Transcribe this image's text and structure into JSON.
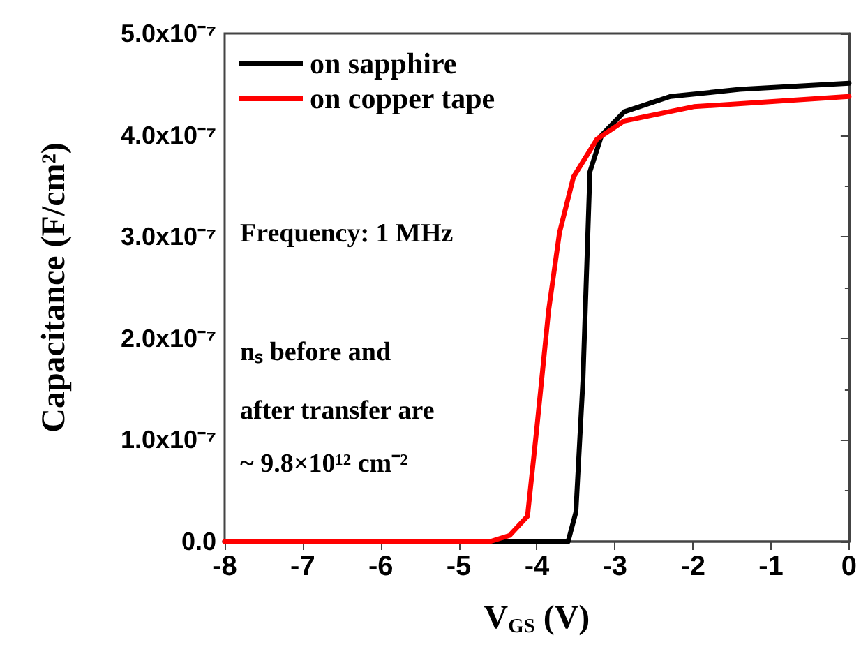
{
  "chart_data": {
    "type": "line",
    "xlabel": "V$_{GS}$ (V)",
    "ylabel": "Capacitance (F/cm²)",
    "xlim": [
      -8,
      0
    ],
    "xticks": [
      -8,
      -7,
      -6,
      -5,
      -4,
      -3,
      -2,
      -1,
      0
    ],
    "ylim": [
      0,
      5e-07
    ],
    "yticks": [
      {
        "value": 0,
        "label": "0.0"
      },
      {
        "value": 1e-07,
        "label": "1.0x10⁻⁷"
      },
      {
        "value": 2e-07,
        "label": "2.0x10⁻⁷"
      },
      {
        "value": 3e-07,
        "label": "3.0x10⁻⁷"
      },
      {
        "value": 4e-07,
        "label": "4.0x10⁻⁷"
      },
      {
        "value": 5e-07,
        "label": "5.0x10⁻⁷"
      }
    ],
    "grid": false,
    "legend": "top left",
    "marker": "none",
    "line_style": "solid",
    "annotations": [
      "Frequency: 1 MHz",
      "nₛ before and",
      "after transfer are",
      "~ 9.8×10¹² cm⁻²"
    ],
    "series": [
      {
        "name": "on sapphire",
        "color": "#000000",
        "x": [
          -8,
          -3.6,
          -3.5,
          -3.41,
          -3.32,
          -3.17,
          -2.88,
          -2.29,
          -1.4,
          0
        ],
        "values": [
          0,
          0,
          2.9e-08,
          1.58e-07,
          3.64e-07,
          4e-07,
          4.23e-07,
          4.38e-07,
          4.45e-07,
          4.51e-07
        ]
      },
      {
        "name": "on copper tape",
        "color": "#ff0000",
        "x": [
          -8,
          -4.6,
          -4.35,
          -4.12,
          -4.0,
          -3.85,
          -3.71,
          -3.53,
          -3.23,
          -2.88,
          -1.99,
          0
        ],
        "values": [
          0,
          0,
          6e-09,
          2.5e-08,
          1.12e-07,
          2.27e-07,
          3.04e-07,
          3.59e-07,
          3.96e-07,
          4.14e-07,
          4.28e-07,
          4.38e-07
        ]
      }
    ]
  }
}
